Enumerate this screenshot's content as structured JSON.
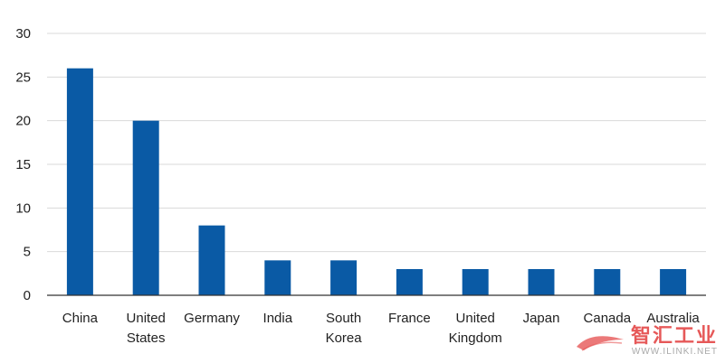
{
  "chart_data": {
    "type": "bar",
    "categories": [
      [
        "China"
      ],
      [
        "United",
        "States"
      ],
      [
        "Germany"
      ],
      [
        "India"
      ],
      [
        "South",
        "Korea"
      ],
      [
        "France"
      ],
      [
        "United",
        "Kingdom"
      ],
      [
        "Japan"
      ],
      [
        "Canada"
      ],
      [
        "Australia"
      ]
    ],
    "values": [
      26,
      20,
      8,
      4,
      4,
      3,
      3,
      3,
      3,
      3
    ],
    "ylim": [
      0,
      30
    ],
    "yticks": [
      0,
      5,
      10,
      15,
      20,
      25,
      30
    ],
    "grid": true,
    "bar_color": "#0a5aa5",
    "title": "",
    "xlabel": "",
    "ylabel": ""
  },
  "watermark": {
    "text": "智汇工业",
    "url": "WWW.ILINKI.NET",
    "color": "#e23b3b"
  }
}
